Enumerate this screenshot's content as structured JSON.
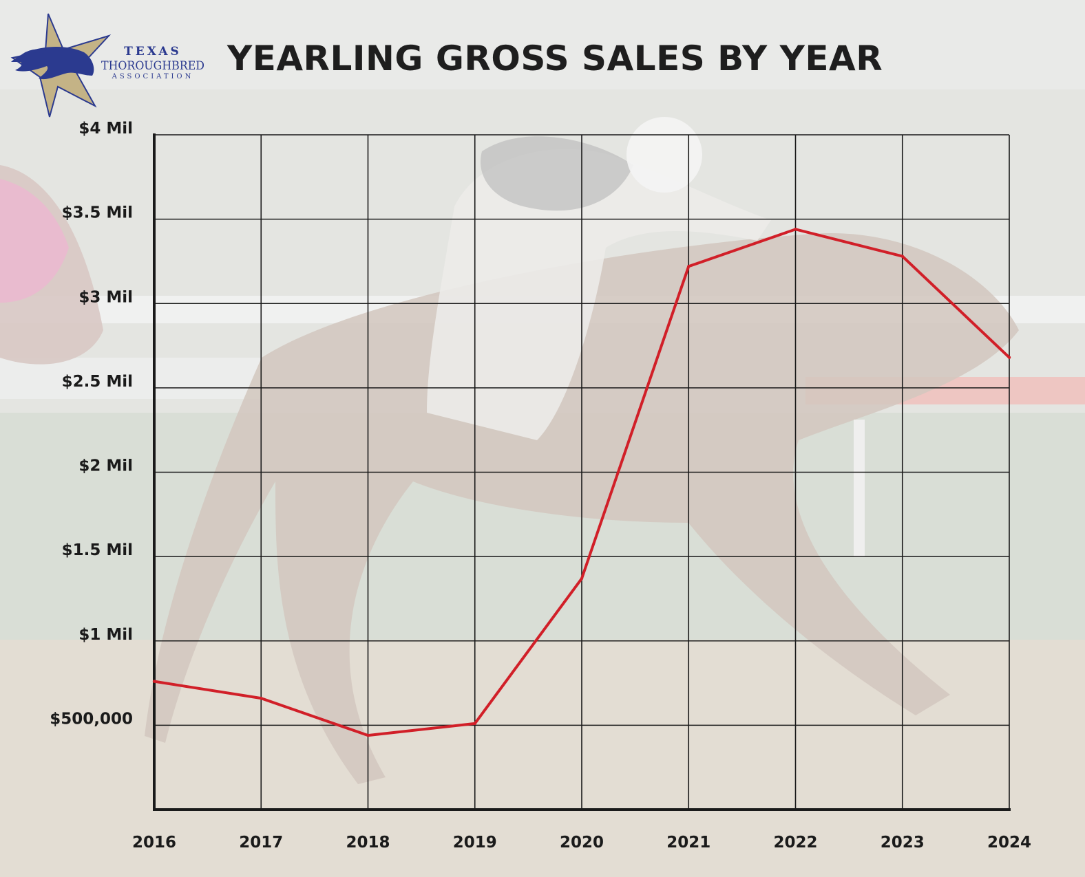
{
  "logo": {
    "icon": "texas-star-horse-head-icon",
    "line1": "TEXAS",
    "line2": "THOROUGHBRED",
    "line3": "ASSOCIATION"
  },
  "colors": {
    "line": "#d11f28",
    "grid": "#1a1a1a",
    "text": "#1e1e1e",
    "logo_blue": "#2b3a8f",
    "logo_gold": "#b9a67a"
  },
  "chart_data": {
    "type": "line",
    "title": "YEARLING GROSS SALES BY YEAR",
    "xlabel": "",
    "ylabel": "",
    "x": [
      "2016",
      "2017",
      "2018",
      "2019",
      "2020",
      "2021",
      "2022",
      "2023",
      "2024"
    ],
    "series": [
      {
        "values": [
          760000,
          660000,
          440000,
          510000,
          1370000,
          3220000,
          3440000,
          3280000,
          2680000
        ]
      }
    ],
    "ylim": [
      0,
      4000000
    ],
    "yticks": [
      500000,
      1000000,
      1500000,
      2000000,
      2500000,
      3000000,
      3500000,
      4000000
    ],
    "ytick_labels": [
      "$500,000",
      "$1 Mil",
      "$1.5 Mil",
      "$2 Mil",
      "$2.5 Mil",
      "$3 Mil",
      "$3.5 Mil",
      "$4 Mil"
    ],
    "grid": true,
    "legend": "none"
  }
}
